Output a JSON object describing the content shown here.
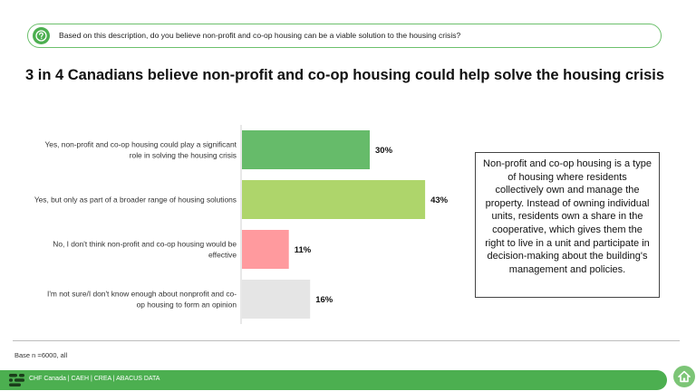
{
  "question": {
    "icon": "question-circle-icon",
    "text": "Based on this description, do you believe non-profit and co-op housing can be a viable solution to the housing crisis?"
  },
  "headline": "3 in 4 Canadians believe non-profit and co-op housing could help solve the housing crisis",
  "chart_data": {
    "type": "bar",
    "orientation": "horizontal",
    "title": "3 in 4 Canadians believe non-profit and co-op housing could help solve the housing crisis",
    "categories": [
      [
        "Yes, non-profit and co-op housing could play a significant",
        "role in solving the housing crisis"
      ],
      [
        "Yes, but only as part of a broader range of housing solutions"
      ],
      [
        "No, I don't think non-profit and co-op housing would be",
        "effective"
      ],
      [
        "I'm not sure/I don't know enough about nonprofit and co-",
        "op housing to form an opinion"
      ]
    ],
    "values": [
      30,
      43,
      11,
      16
    ],
    "value_labels": [
      "30%",
      "43%",
      "11%",
      "16%"
    ],
    "colors": [
      "#66bb6a",
      "#aed56b",
      "#ff9a9e",
      "#e5e5e5"
    ],
    "xlim": [
      0,
      100
    ],
    "grid": false,
    "legend": "none"
  },
  "callout": {
    "text": "Non-profit and co-op housing is a type of housing where residents collectively own and manage the property. Instead of owning individual units, residents own a share in the cooperative, which gives them the right to live in a unit and participate in decision-making about the building's management and policies."
  },
  "base_note": "Base n =6000, all",
  "footer": {
    "logo_icon": "chf-logo-icon",
    "text": "CHF Canada |     CAEH   | CREA     |   ABACUS DATA",
    "home_icon": "home-icon"
  }
}
